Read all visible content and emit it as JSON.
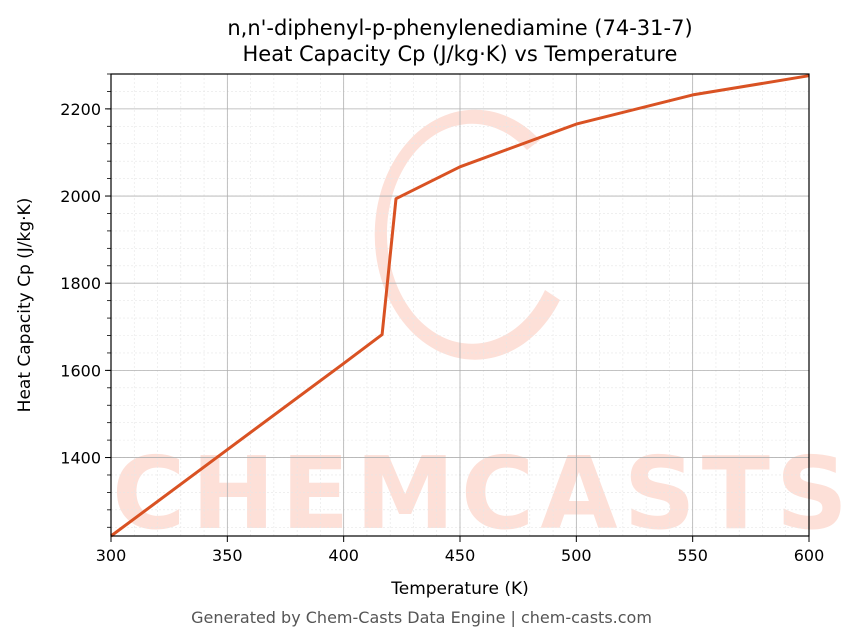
{
  "chart_data": {
    "type": "line",
    "title": "n,n'-diphenyl-p-phenylenediamine (74-31-7)",
    "subtitle": "Heat Capacity Cp (J/kg·K) vs Temperature",
    "xlabel": "Temperature (K)",
    "ylabel": "Heat Capacity Cp (J/kg·K)",
    "xlim": [
      300,
      600
    ],
    "ylim": [
      1220,
      2280
    ],
    "xticks": [
      300,
      350,
      400,
      450,
      500,
      550,
      600
    ],
    "yticks": [
      1400,
      1600,
      1800,
      2000,
      2200
    ],
    "grid": true,
    "series": [
      {
        "color": "#d95223",
        "x": [
          300,
          350,
          400,
          416.5,
          422.5,
          450,
          500,
          550,
          600
        ],
        "y": [
          1220,
          1418,
          1616,
          1682,
          1994,
          2067,
          2165,
          2232,
          2276
        ]
      }
    ]
  },
  "watermark": {
    "text": "CHEMCASTS"
  },
  "footer": "Generated by Chem-Casts Data Engine | chem-casts.com"
}
